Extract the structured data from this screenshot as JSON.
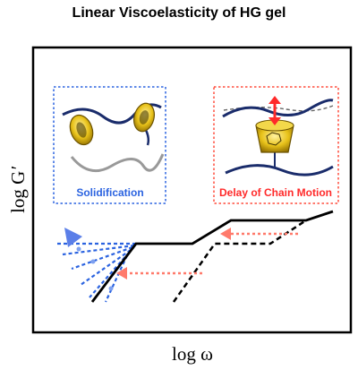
{
  "title": "Linear Viscoelasticity of HG gel",
  "axes": {
    "y_label_main": "log G",
    "y_label_prime": "′",
    "x_label": "log ω"
  },
  "insets": {
    "left_caption": "Solidification",
    "right_caption": "Delay of Chain Motion"
  },
  "colors": {
    "blue": "#2b63e0",
    "red": "#ff4d3d",
    "chain": "#1a2c6b",
    "ring": "#d4a700"
  }
}
